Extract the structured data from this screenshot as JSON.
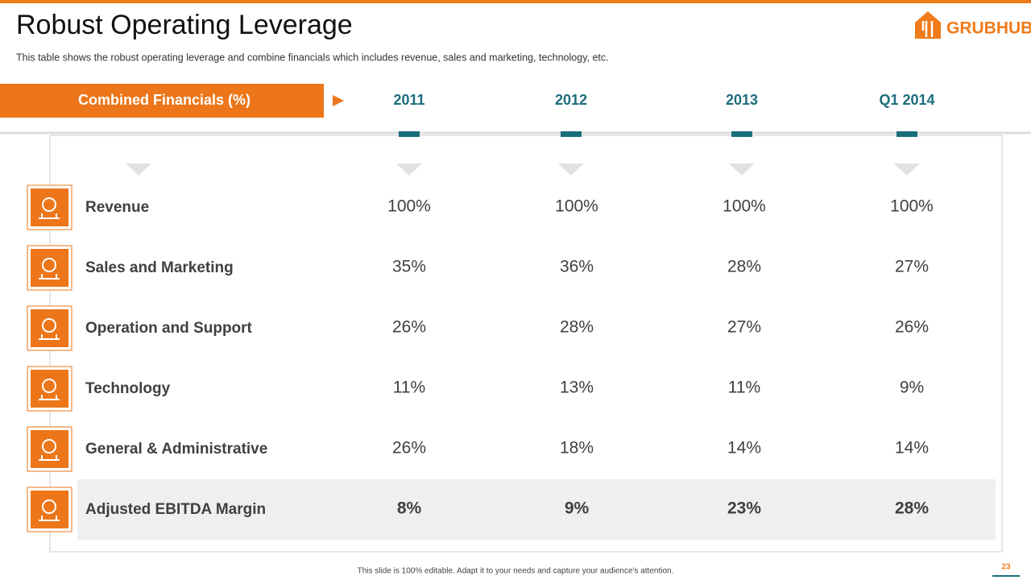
{
  "header": {
    "title": "Robust Operating Leverage",
    "subtitle": "This table shows the robust operating leverage and combine financials which includes revenue, sales and marketing, technology, etc.",
    "logo": "GRUBHUB"
  },
  "table": {
    "header_label": "Combined Financials (%)",
    "columns": [
      "2011",
      "2012",
      "2013",
      "Q1 2014"
    ],
    "rows": [
      {
        "label": "Revenue",
        "values": [
          "100%",
          "100%",
          "100%",
          "100%"
        ]
      },
      {
        "label": "Sales and Marketing",
        "values": [
          "35%",
          "36%",
          "28%",
          "27%"
        ]
      },
      {
        "label": "Operation and Support",
        "values": [
          "26%",
          "28%",
          "27%",
          "26%"
        ]
      },
      {
        "label": "Technology",
        "values": [
          "11%",
          "13%",
          "11%",
          "9%"
        ]
      },
      {
        "label": "General & Administrative",
        "values": [
          "26%",
          "18%",
          "14%",
          "14%"
        ]
      },
      {
        "label": "Adjusted EBITDA Margin",
        "values": [
          "8%",
          "9%",
          "23%",
          "28%"
        ]
      }
    ]
  },
  "footer": {
    "note": "This slide is 100% editable.  Adapt it to your needs and capture your audience's attention.",
    "page": "23"
  }
}
